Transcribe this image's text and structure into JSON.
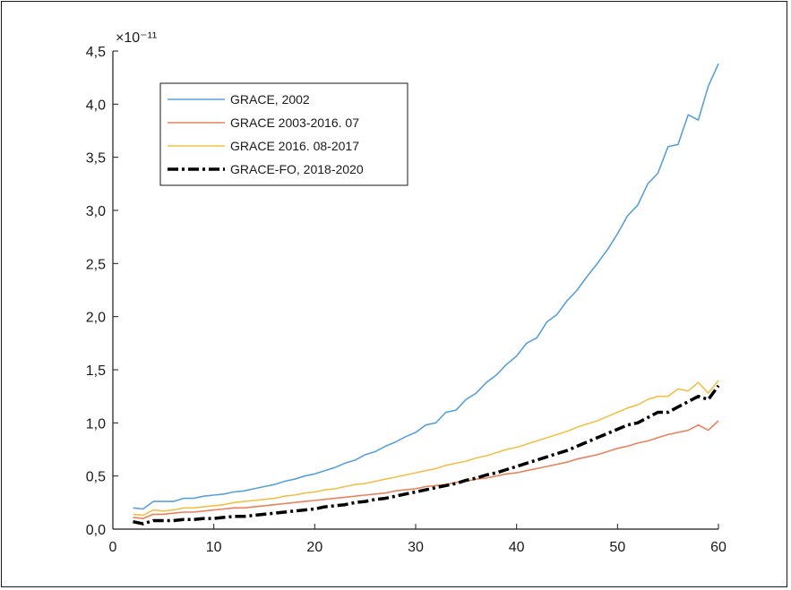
{
  "chart_data": {
    "type": "line",
    "title": "",
    "xlabel": "",
    "ylabel": "",
    "y_exponent_label": "×10⁻¹¹",
    "xlim": [
      0,
      60
    ],
    "ylim": [
      0,
      4.5
    ],
    "x_ticks": [
      0,
      10,
      20,
      30,
      40,
      50,
      60
    ],
    "x_tick_labels": [
      "0",
      "10",
      "20",
      "30",
      "40",
      "50",
      "60"
    ],
    "y_ticks": [
      0,
      0.5,
      1.0,
      1.5,
      2.0,
      2.5,
      3.0,
      3.5,
      4.0,
      4.5
    ],
    "y_tick_labels": [
      "0,0",
      "0,5",
      "1,0",
      "1,5",
      "2,0",
      "2,5",
      "3,0",
      "3,5",
      "4,0",
      "4,5"
    ],
    "grid": false,
    "legend_position": "top-left",
    "x": [
      2,
      3,
      4,
      5,
      6,
      7,
      8,
      9,
      10,
      11,
      12,
      13,
      14,
      15,
      16,
      17,
      18,
      19,
      20,
      21,
      22,
      23,
      24,
      25,
      26,
      27,
      28,
      29,
      30,
      31,
      32,
      33,
      34,
      35,
      36,
      37,
      38,
      39,
      40,
      41,
      42,
      43,
      44,
      45,
      46,
      47,
      48,
      49,
      50,
      51,
      52,
      53,
      54,
      55,
      56,
      57,
      58,
      59,
      60
    ],
    "series": [
      {
        "name": "GRACE, 2002",
        "color": "#5aa0d8",
        "style": "solid",
        "values": [
          0.2,
          0.19,
          0.26,
          0.26,
          0.26,
          0.29,
          0.29,
          0.31,
          0.32,
          0.33,
          0.35,
          0.36,
          0.38,
          0.4,
          0.42,
          0.45,
          0.47,
          0.5,
          0.52,
          0.55,
          0.58,
          0.62,
          0.65,
          0.7,
          0.73,
          0.78,
          0.82,
          0.87,
          0.91,
          0.98,
          1.0,
          1.1,
          1.12,
          1.22,
          1.28,
          1.38,
          1.45,
          1.55,
          1.63,
          1.75,
          1.8,
          1.95,
          2.02,
          2.15,
          2.25,
          2.38,
          2.5,
          2.63,
          2.78,
          2.95,
          3.05,
          3.25,
          3.35,
          3.6,
          3.62,
          3.9,
          3.85,
          4.17,
          4.38
        ]
      },
      {
        "name": "GRACE 2003-2016. 07",
        "color": "#e8825c",
        "style": "solid",
        "values": [
          0.11,
          0.1,
          0.14,
          0.14,
          0.15,
          0.16,
          0.16,
          0.17,
          0.18,
          0.19,
          0.2,
          0.2,
          0.21,
          0.22,
          0.23,
          0.24,
          0.25,
          0.26,
          0.27,
          0.28,
          0.29,
          0.3,
          0.31,
          0.32,
          0.33,
          0.34,
          0.36,
          0.37,
          0.38,
          0.4,
          0.41,
          0.42,
          0.44,
          0.45,
          0.47,
          0.48,
          0.5,
          0.52,
          0.53,
          0.55,
          0.57,
          0.59,
          0.61,
          0.63,
          0.66,
          0.68,
          0.7,
          0.73,
          0.76,
          0.78,
          0.81,
          0.83,
          0.86,
          0.89,
          0.91,
          0.93,
          0.98,
          0.93,
          1.02
        ]
      },
      {
        "name": "GRACE 2016. 08-2017",
        "color": "#f0c048",
        "style": "solid",
        "values": [
          0.14,
          0.13,
          0.18,
          0.17,
          0.18,
          0.2,
          0.2,
          0.21,
          0.22,
          0.23,
          0.25,
          0.26,
          0.27,
          0.28,
          0.29,
          0.31,
          0.32,
          0.34,
          0.35,
          0.37,
          0.38,
          0.4,
          0.42,
          0.43,
          0.45,
          0.47,
          0.49,
          0.51,
          0.53,
          0.55,
          0.57,
          0.6,
          0.62,
          0.64,
          0.67,
          0.69,
          0.72,
          0.75,
          0.77,
          0.8,
          0.83,
          0.86,
          0.89,
          0.92,
          0.96,
          0.99,
          1.02,
          1.06,
          1.1,
          1.14,
          1.17,
          1.22,
          1.25,
          1.25,
          1.32,
          1.3,
          1.38,
          1.28,
          1.4
        ]
      },
      {
        "name": "GRACE-FO, 2018-2020",
        "color": "#000000",
        "style": "dash-dot",
        "values": [
          0.07,
          0.05,
          0.08,
          0.08,
          0.08,
          0.09,
          0.09,
          0.1,
          0.1,
          0.11,
          0.12,
          0.12,
          0.13,
          0.14,
          0.15,
          0.16,
          0.17,
          0.18,
          0.19,
          0.21,
          0.22,
          0.23,
          0.25,
          0.26,
          0.28,
          0.29,
          0.31,
          0.33,
          0.35,
          0.37,
          0.39,
          0.41,
          0.43,
          0.46,
          0.48,
          0.51,
          0.53,
          0.56,
          0.59,
          0.62,
          0.65,
          0.68,
          0.71,
          0.74,
          0.78,
          0.82,
          0.86,
          0.9,
          0.94,
          0.98,
          1.0,
          1.05,
          1.1,
          1.1,
          1.15,
          1.2,
          1.25,
          1.22,
          1.35
        ]
      }
    ]
  }
}
